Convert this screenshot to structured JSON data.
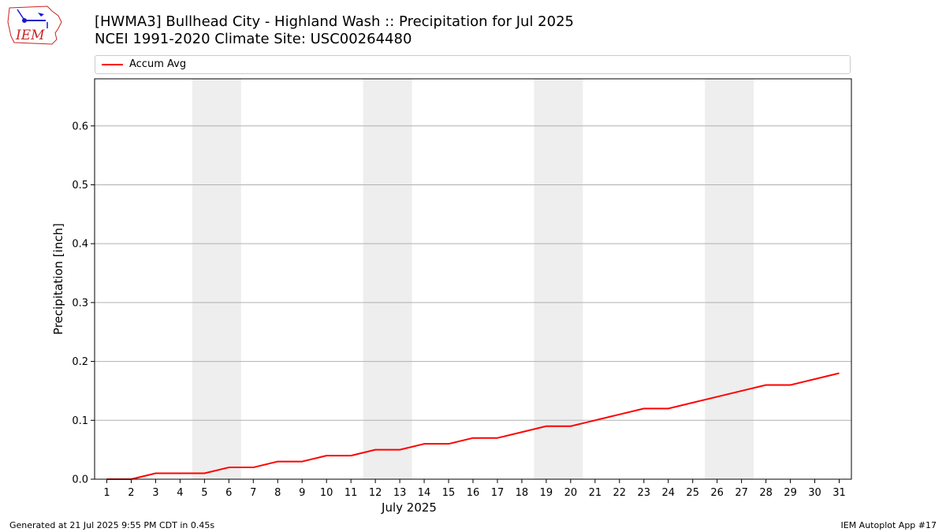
{
  "logo": {
    "text": "IEM",
    "colors": {
      "text": "#cc2222",
      "outline": "#cc2222",
      "icon": "#1a1acc"
    }
  },
  "header": {
    "title": "[HWMA3] Bullhead City - Highland Wash :: Precipitation for Jul 2025",
    "subtitle": "NCEI 1991-2020 Climate Site: USC00264480"
  },
  "footer": {
    "left": "Generated at 21 Jul 2025 9:55 PM CDT in 0.45s",
    "right": "IEM Autoplot App #17"
  },
  "chart_data": {
    "type": "line",
    "xlabel": "July 2025",
    "ylabel": "Precipitation [inch]",
    "xlim": [
      0.5,
      31.5
    ],
    "ylim": [
      0,
      0.68
    ],
    "yticks": [
      0.0,
      0.1,
      0.2,
      0.3,
      0.4,
      0.5,
      0.6
    ],
    "ytick_labels": [
      "0.0",
      "0.1",
      "0.2",
      "0.3",
      "0.4",
      "0.5",
      "0.6"
    ],
    "x": [
      1,
      2,
      3,
      4,
      5,
      6,
      7,
      8,
      9,
      10,
      11,
      12,
      13,
      14,
      15,
      16,
      17,
      18,
      19,
      20,
      21,
      22,
      23,
      24,
      25,
      26,
      27,
      28,
      29,
      30,
      31
    ],
    "x_labels": [
      "1",
      "2",
      "3",
      "4",
      "5",
      "6",
      "7",
      "8",
      "9",
      "10",
      "11",
      "12",
      "13",
      "14",
      "15",
      "16",
      "17",
      "18",
      "19",
      "20",
      "21",
      "22",
      "23",
      "24",
      "25",
      "26",
      "27",
      "28",
      "29",
      "30",
      "31"
    ],
    "weekend_bands": [
      [
        5,
        6
      ],
      [
        12,
        13
      ],
      [
        19,
        20
      ],
      [
        26,
        27
      ]
    ],
    "series": [
      {
        "name": "Accum Avg",
        "color": "#ff0000",
        "values": [
          0.0,
          0.0,
          0.01,
          0.01,
          0.01,
          0.02,
          0.02,
          0.03,
          0.03,
          0.04,
          0.04,
          0.05,
          0.05,
          0.06,
          0.06,
          0.07,
          0.07,
          0.08,
          0.09,
          0.09,
          0.1,
          0.11,
          0.12,
          0.12,
          0.13,
          0.14,
          0.15,
          0.16,
          0.16,
          0.17,
          0.18
        ]
      }
    ],
    "grid": "horizontal",
    "legend_position": "top",
    "band_color": "#eeeeee",
    "grid_color": "#b0b0b0"
  }
}
